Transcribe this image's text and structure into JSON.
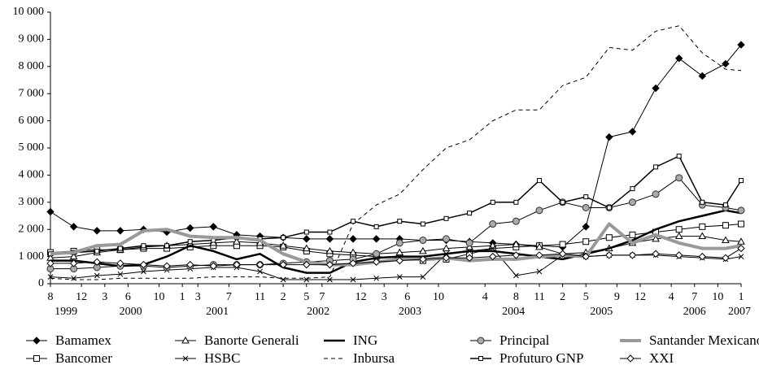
{
  "chart_data": {
    "type": "line",
    "x": [
      "1999-08",
      "1999-11",
      "2000-02",
      "2000-05",
      "2000-08",
      "2000-11",
      "2001-02",
      "2001-05",
      "2001-08",
      "2001-11",
      "2002-02",
      "2002-05",
      "2002-08",
      "2002-11",
      "2003-02",
      "2003-05",
      "2003-08",
      "2003-11",
      "2004-02",
      "2004-05",
      "2004-08",
      "2004-11",
      "2005-02",
      "2005-05",
      "2005-08",
      "2005-11",
      "2006-02",
      "2006-05",
      "2006-08",
      "2006-11",
      "2007-01"
    ],
    "xlim": [
      "1999-08",
      "2007-01"
    ],
    "xticks": [
      {
        "value": "1999-08",
        "label": "8"
      },
      {
        "value": "1999-12",
        "label": "12"
      },
      {
        "value": "2000-03",
        "label": "3"
      },
      {
        "value": "2000-06",
        "label": "6"
      },
      {
        "value": "2000-10",
        "label": "10"
      },
      {
        "value": "2001-01",
        "label": "1"
      },
      {
        "value": "2001-03",
        "label": "3"
      },
      {
        "value": "2001-07",
        "label": "7"
      },
      {
        "value": "2001-11",
        "label": "11"
      },
      {
        "value": "2002-02",
        "label": "2"
      },
      {
        "value": "2002-05",
        "label": "5"
      },
      {
        "value": "2002-07",
        "label": "7"
      },
      {
        "value": "2002-12",
        "label": "12"
      },
      {
        "value": "2003-03",
        "label": "3"
      },
      {
        "value": "2003-06",
        "label": "6"
      },
      {
        "value": "2003-10",
        "label": "10"
      },
      {
        "value": "2004-04",
        "label": "4"
      },
      {
        "value": "2004-08",
        "label": "8"
      },
      {
        "value": "2004-11",
        "label": "11"
      },
      {
        "value": "2005-02",
        "label": "2"
      },
      {
        "value": "2005-05",
        "label": "5"
      },
      {
        "value": "2005-09",
        "label": "9"
      },
      {
        "value": "2005-12",
        "label": "12"
      },
      {
        "value": "2006-04",
        "label": "4"
      },
      {
        "value": "2006-07",
        "label": "7"
      },
      {
        "value": "2006-10",
        "label": "10"
      },
      {
        "value": "2007-01",
        "label": "1"
      }
    ],
    "years": [
      "1999",
      "2000",
      "2001",
      "2002",
      "2003",
      "2004",
      "2005",
      "2006",
      "2007"
    ],
    "ylim": [
      0,
      10000
    ],
    "yticks": [
      0,
      {
        "value": 1000,
        "label": "1 000"
      },
      {
        "value": 2000,
        "label": "2 000"
      },
      {
        "value": 3000,
        "label": "3 000"
      },
      {
        "value": 4000,
        "label": "4 000"
      },
      {
        "value": 5000,
        "label": "5 000"
      },
      {
        "value": 6000,
        "label": "6 000"
      },
      {
        "value": 7000,
        "label": "7 000"
      },
      {
        "value": 8000,
        "label": "8 000"
      },
      {
        "value": 9000,
        "label": "9 000"
      },
      {
        "value": 10000,
        "label": "10 000"
      }
    ],
    "grid": false,
    "legend": "bottom",
    "series": [
      {
        "name": "Bamamex",
        "color": "#000000",
        "width": 1,
        "dash": "",
        "marker": "diamond-filled",
        "values": [
          2650,
          2100,
          1950,
          1950,
          2000,
          1900,
          2050,
          2100,
          1800,
          1750,
          1700,
          1650,
          1650,
          1650,
          1650,
          1650,
          1600,
          1600,
          1550,
          1500,
          1450,
          1400,
          1350,
          2100,
          5400,
          5600,
          7200,
          8300,
          7650,
          8100,
          8800
        ]
      },
      {
        "name": "Bancomer",
        "color": "#000000",
        "width": 1,
        "dash": "",
        "marker": "square-open",
        "values": [
          1150,
          1200,
          1250,
          1250,
          1300,
          1300,
          1350,
          1400,
          1400,
          1400,
          1350,
          1200,
          1100,
          1050,
          1000,
          950,
          850,
          900,
          1100,
          1300,
          1350,
          1400,
          1450,
          1550,
          1700,
          1800,
          1900,
          2000,
          2100,
          2150,
          2200
        ]
      },
      {
        "name": "Banorte Generali",
        "color": "#000000",
        "width": 1,
        "dash": "",
        "marker": "triangle-open",
        "values": [
          950,
          1000,
          1150,
          1250,
          1350,
          1400,
          1450,
          1500,
          1550,
          1500,
          1400,
          1300,
          1200,
          1150,
          1100,
          1150,
          1200,
          1300,
          1350,
          1400,
          1450,
          1350,
          1100,
          1150,
          1300,
          1500,
          1650,
          1750,
          1750,
          1600,
          1550
        ]
      },
      {
        "name": "HSBC",
        "color": "#000000",
        "width": 1,
        "dash": "",
        "marker": "cross",
        "values": [
          250,
          200,
          300,
          350,
          450,
          500,
          550,
          600,
          600,
          450,
          150,
          150,
          150,
          150,
          200,
          250,
          250,
          1100,
          1200,
          1300,
          300,
          450,
          1050,
          1000,
          1050,
          1050,
          1050,
          1000,
          950,
          900,
          1000
        ]
      },
      {
        "name": "ING",
        "color": "#000000",
        "width": 2.5,
        "dash": "",
        "marker": "none",
        "values": [
          850,
          850,
          750,
          650,
          700,
          1000,
          1400,
          1200,
          900,
          1100,
          600,
          400,
          400,
          800,
          950,
          1000,
          1000,
          1100,
          1200,
          1200,
          1100,
          1000,
          900,
          1100,
          1300,
          1600,
          2000,
          2300,
          2500,
          2700,
          2600
        ]
      },
      {
        "name": "Inbursa",
        "color": "#000000",
        "width": 1,
        "dash": "5 4",
        "marker": "none",
        "values": [
          200,
          150,
          150,
          200,
          200,
          200,
          200,
          250,
          250,
          250,
          200,
          200,
          250,
          2200,
          2900,
          3300,
          4200,
          5000,
          5300,
          6000,
          6400,
          6400,
          7300,
          7600,
          8700,
          8600,
          9300,
          9500,
          8500,
          7900,
          7850
        ]
      },
      {
        "name": "Principal",
        "color": "#000000",
        "width": 1,
        "dash": "",
        "marker": "circle-gray",
        "values": [
          550,
          550,
          600,
          650,
          650,
          600,
          650,
          700,
          700,
          700,
          750,
          800,
          850,
          900,
          1100,
          1500,
          1600,
          1650,
          1500,
          2200,
          2300,
          2700,
          3000,
          2800,
          2800,
          3000,
          3300,
          3900,
          2900,
          2800,
          2700
        ]
      },
      {
        "name": "Profuturo GNP",
        "color": "#000000",
        "width": 1.5,
        "dash": "",
        "marker": "square-small",
        "values": [
          1100,
          1150,
          1200,
          1300,
          1400,
          1400,
          1550,
          1600,
          1700,
          1650,
          1700,
          1900,
          1900,
          2300,
          2100,
          2300,
          2200,
          2400,
          2600,
          3000,
          3000,
          3800,
          3000,
          3200,
          2800,
          3500,
          4300,
          4700,
          3000,
          2900,
          3800
        ]
      },
      {
        "name": "Santander Mexicano",
        "color": "#999999",
        "width": 4,
        "dash": "",
        "marker": "none",
        "values": [
          1100,
          1150,
          1400,
          1450,
          1950,
          2000,
          1750,
          1700,
          1700,
          1600,
          1100,
          800,
          700,
          700,
          800,
          900,
          900,
          950,
          850,
          900,
          900,
          1000,
          1050,
          1000,
          2200,
          1500,
          1800,
          1500,
          1300,
          1300,
          1400
        ]
      },
      {
        "name": "XXI",
        "color": "#000000",
        "width": 1,
        "dash": "",
        "marker": "diamond-open",
        "values": [
          750,
          750,
          800,
          750,
          700,
          650,
          700,
          650,
          700,
          700,
          700,
          700,
          700,
          750,
          800,
          850,
          900,
          950,
          950,
          1000,
          1050,
          1050,
          1100,
          1000,
          1050,
          1050,
          1100,
          1050,
          1000,
          950,
          1300
        ]
      }
    ]
  }
}
